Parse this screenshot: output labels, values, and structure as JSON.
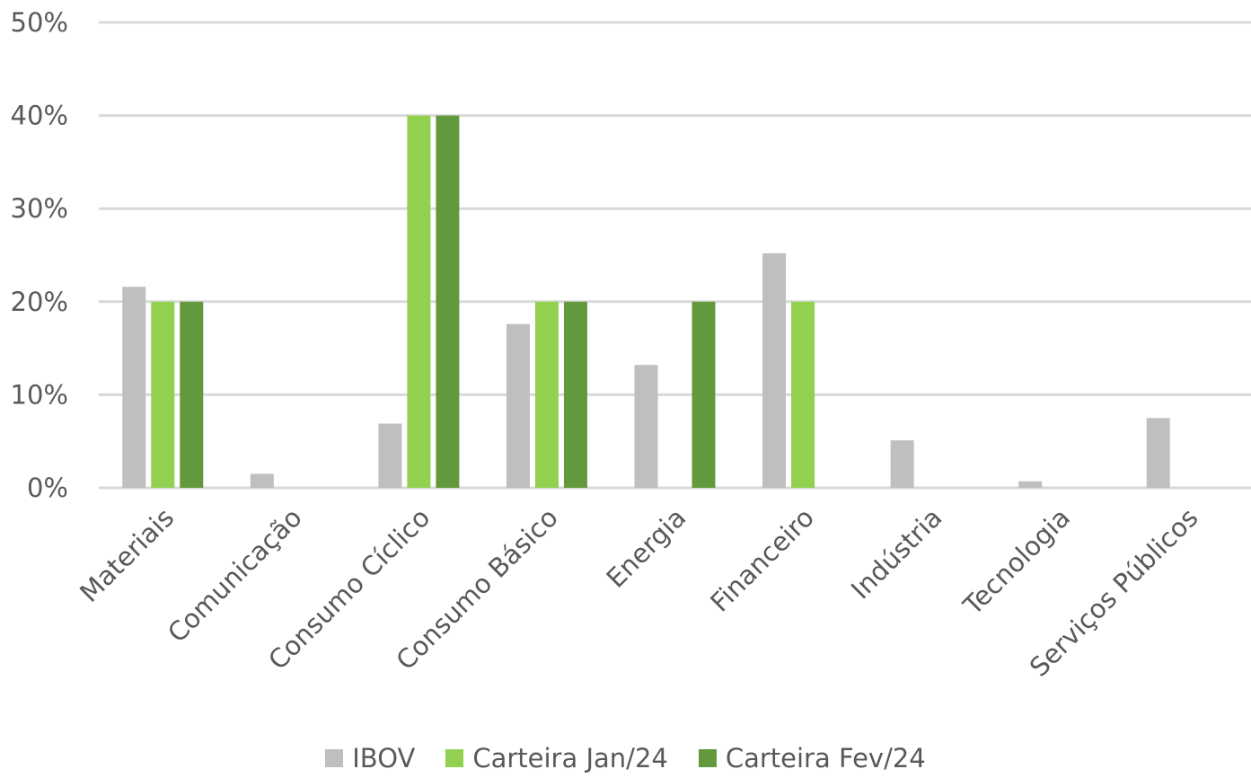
{
  "chart_data": {
    "type": "bar",
    "categories": [
      "Materiais",
      "Comunicação",
      "Consumo Cíclico",
      "Consumo Básico",
      "Energia",
      "Financeiro",
      "Indústria",
      "Tecnologia",
      "Serviços Públicos"
    ],
    "series": [
      {
        "name": "IBOV",
        "color": "#bfbfbf",
        "values": [
          21.6,
          1.5,
          6.9,
          17.6,
          13.2,
          25.2,
          5.1,
          0.7,
          7.5
        ]
      },
      {
        "name": "Carteira Jan/24",
        "color": "#92d050",
        "values": [
          20,
          0,
          40,
          20,
          0,
          20,
          0,
          0,
          0
        ]
      },
      {
        "name": "Carteira Fev/24",
        "color": "#63993d",
        "values": [
          20,
          0,
          40,
          20,
          20,
          0,
          0,
          0,
          0
        ]
      }
    ],
    "y_ticks": [
      "0%",
      "10%",
      "20%",
      "30%",
      "40%",
      "50%"
    ],
    "ylim": [
      0,
      50
    ],
    "grid": true,
    "legend_position": "bottom"
  }
}
